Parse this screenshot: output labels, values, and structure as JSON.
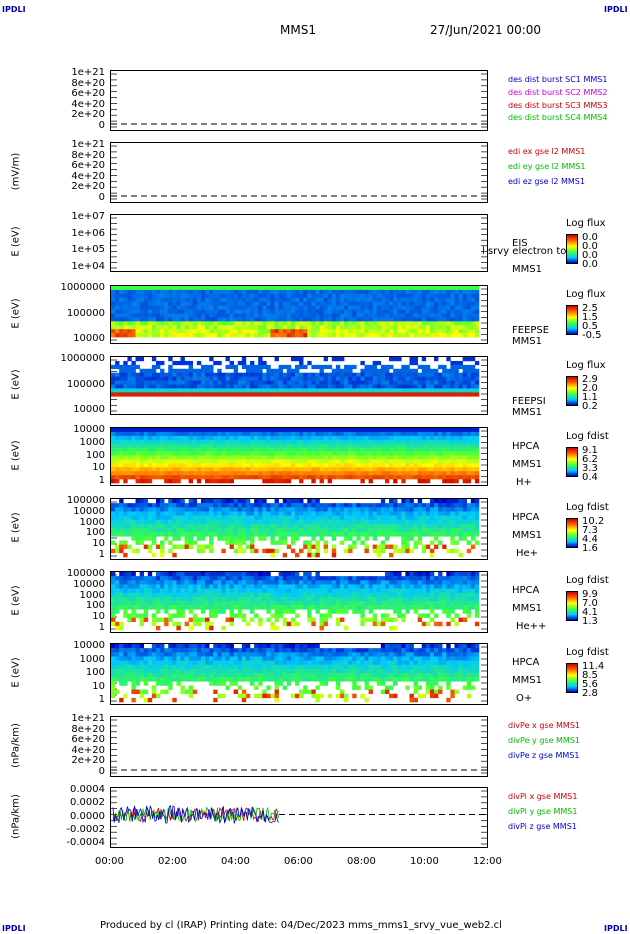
{
  "corners": {
    "tl": "IPDLI",
    "tr": "IPDLI",
    "bl": "IPDLI",
    "br": "IPDLI"
  },
  "header": {
    "spacecraft": "MMS1",
    "datetime": "27/Jun/2021 00:00"
  },
  "footer": {
    "text": "Produced by cl (IRAP)   Printing date: 04/Dec/2023   mms_mms1_srvy_vue_web2.cl"
  },
  "colors": {
    "red": "#cc0000",
    "magenta": "#cc00cc",
    "green": "#00bb00",
    "blue": "#0000cc"
  },
  "chart_data": [
    {
      "type": "line",
      "ylabel": "",
      "yticks": [
        "1e+21",
        "8e+20",
        "6e+20",
        "4e+20",
        "2e+20",
        "0"
      ],
      "series": [
        {
          "name": "des dist burst SC1 MMS1",
          "color": "#0000cc"
        },
        {
          "name": "des dist burst SC2 MMS2",
          "color": "#cc00cc"
        },
        {
          "name": "des dist burst SC3 MMS3",
          "color": "#cc0000"
        },
        {
          "name": "des dist burst SC4 MMS4",
          "color": "#00bb00"
        }
      ]
    },
    {
      "type": "line",
      "ylabel": "(mV/m)",
      "yticks": [
        "1e+21",
        "8e+20",
        "6e+20",
        "4e+20",
        "2e+20",
        "0"
      ],
      "series": [
        {
          "name": "edi ex gse l2 MMS1",
          "color": "#cc0000"
        },
        {
          "name": "edi ey gse l2 MMS1",
          "color": "#00bb00"
        },
        {
          "name": "edi ez gse l2 MMS1",
          "color": "#0000cc"
        }
      ]
    },
    {
      "type": "heatmap",
      "ylabel": "E (eV)",
      "yticks": [
        "1e+07",
        "1e+06",
        "1e+05",
        "1e+04"
      ],
      "instrument": "EIS",
      "spacecraft": "MMS1",
      "overlay": "l srvy electron to",
      "cb_title": "Log flux",
      "cb_values": [
        "0.0",
        "0.0",
        "0.0",
        "0.0"
      ]
    },
    {
      "type": "heatmap",
      "ylabel": "E (eV)",
      "yticks": [
        "1000000",
        "100000",
        "10000"
      ],
      "instrument": "FEEPSE",
      "spacecraft": "MMS1",
      "cb_title": "Log flux",
      "cb_values": [
        "2.5",
        "1.5",
        "0.5",
        "-0.5"
      ]
    },
    {
      "type": "heatmap",
      "ylabel": "E (eV)",
      "yticks": [
        "1000000",
        "100000",
        "10000"
      ],
      "instrument": "FEEPSI",
      "spacecraft": "MMS1",
      "cb_title": "Log flux",
      "cb_values": [
        "2.9",
        "2.0",
        "1.1",
        "0.2"
      ]
    },
    {
      "type": "heatmap",
      "ylabel": "E (eV)",
      "yticks": [
        "10000",
        "1000",
        "100",
        "10",
        "1"
      ],
      "instrument": "HPCA",
      "spacecraft": "MMS1",
      "species": "H+",
      "cb_title": "Log fdist",
      "cb_values": [
        "9.1",
        "6.2",
        "3.3",
        "0.4"
      ]
    },
    {
      "type": "heatmap",
      "ylabel": "E (eV)",
      "yticks": [
        "100000",
        "10000",
        "1000",
        "100",
        "10",
        "1"
      ],
      "instrument": "HPCA",
      "spacecraft": "MMS1",
      "species": "He+",
      "cb_title": "Log fdist",
      "cb_values": [
        "10.2",
        "7.3",
        "4.4",
        "1.6"
      ]
    },
    {
      "type": "heatmap",
      "ylabel": "E (eV)",
      "yticks": [
        "100000",
        "10000",
        "1000",
        "100",
        "10",
        "1"
      ],
      "instrument": "HPCA",
      "spacecraft": "MMS1",
      "species": "He++",
      "cb_title": "Log fdist",
      "cb_values": [
        "9.9",
        "7.0",
        "4.1",
        "1.3"
      ]
    },
    {
      "type": "heatmap",
      "ylabel": "E (eV)",
      "yticks": [
        "10000",
        "1000",
        "100",
        "10",
        "1"
      ],
      "instrument": "HPCA",
      "spacecraft": "MMS1",
      "species": "O+",
      "cb_title": "Log fdist",
      "cb_values": [
        "11.4",
        "8.5",
        "5.6",
        "2.8"
      ]
    },
    {
      "type": "line",
      "ylabel": "(nPa/km)",
      "yticks": [
        "1e+21",
        "8e+20",
        "6e+20",
        "4e+20",
        "2e+20",
        "0"
      ],
      "series": [
        {
          "name": "divPe x gse MMS1",
          "color": "#cc0000"
        },
        {
          "name": "divPe y gse MMS1",
          "color": "#00bb00"
        },
        {
          "name": "divPe z gse MMS1",
          "color": "#0000cc"
        }
      ]
    },
    {
      "type": "line",
      "ylabel": "(nPa/km)",
      "yticks": [
        "0.0004",
        "0.0002",
        "0.0000",
        "-0.0002",
        "-0.0004"
      ],
      "series": [
        {
          "name": "divPi x gse MMS1",
          "color": "#cc0000"
        },
        {
          "name": "divPi y gse MMS1",
          "color": "#00bb00"
        },
        {
          "name": "divPi z gse MMS1",
          "color": "#0000cc"
        }
      ],
      "data_end_time": "05:20"
    }
  ],
  "xaxis": {
    "ticks": [
      "00:00",
      "02:00",
      "04:00",
      "06:00",
      "08:00",
      "10:00",
      "12:00"
    ]
  }
}
